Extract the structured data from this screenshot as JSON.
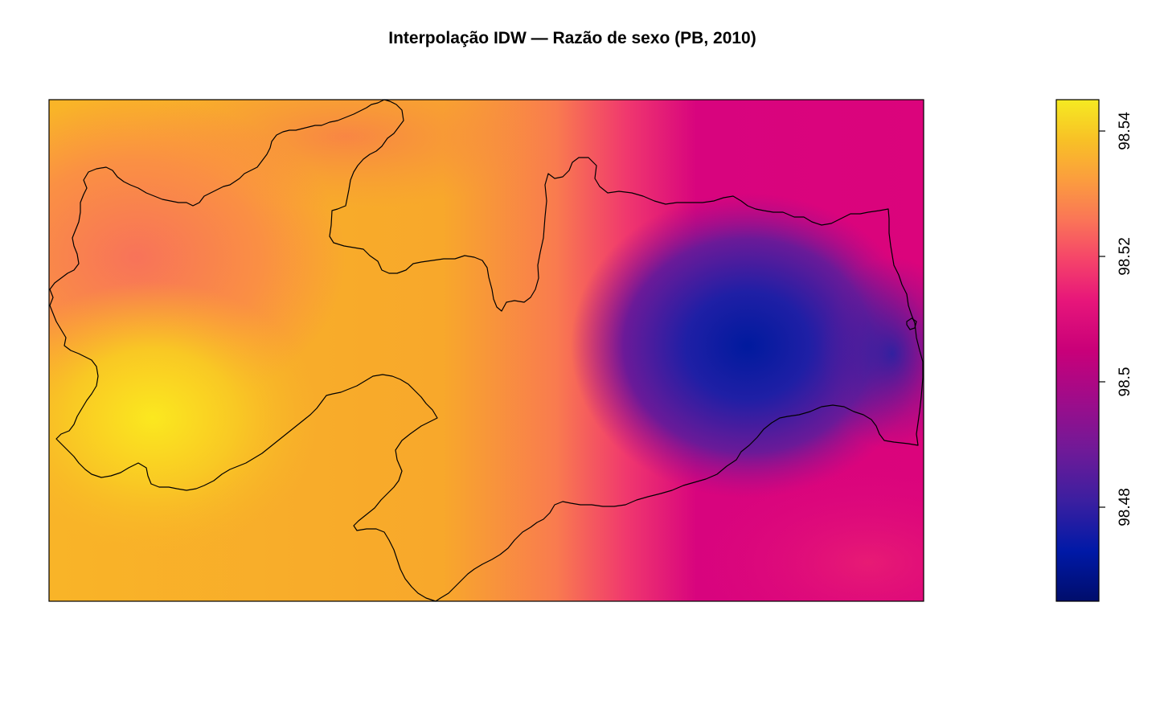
{
  "title": "Interpolação IDW — Razão de sexo (PB, 2010)",
  "legend": {
    "ticks": [
      "98.48",
      "98.5",
      "98.52",
      "98.54"
    ],
    "tick_values": [
      98.48,
      98.5,
      98.52,
      98.54
    ],
    "range": [
      98.465,
      98.545
    ],
    "palette": [
      "#000d6b",
      "#0019a7",
      "#3b1fa0",
      "#6f1a98",
      "#9e0c8a",
      "#c90079",
      "#e7167a",
      "#f5436a",
      "#fa7557",
      "#fb9d3e",
      "#f8c126",
      "#f5ea22"
    ]
  },
  "colors": {
    "west": "#f9bd25",
    "central": "#f8a92c",
    "northwest": "#fa8047",
    "transition": "#f5486a",
    "east": "#e0087c",
    "low_center": "#0e1aa3",
    "high_southwest": "#fbe61f"
  }
}
